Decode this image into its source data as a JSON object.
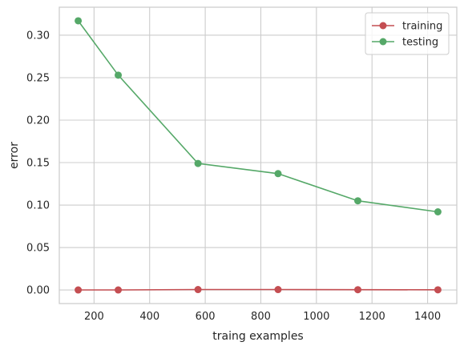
{
  "chart_data": {
    "type": "line",
    "title": "",
    "xlabel": "traing examples",
    "ylabel": "error",
    "x": [
      143,
      287,
      574,
      862,
      1149,
      1437
    ],
    "series": [
      {
        "name": "training",
        "color": "#c44e52",
        "marker": "circle",
        "values": [
          0.0,
          0.0,
          0.0005,
          0.0005,
          0.0003,
          0.0002
        ]
      },
      {
        "name": "testing",
        "color": "#55a868",
        "marker": "circle",
        "values": [
          0.317,
          0.253,
          0.149,
          0.137,
          0.105,
          0.092
        ]
      }
    ],
    "xlim": [
      75,
      1505
    ],
    "ylim": [
      -0.016,
      0.333
    ],
    "xticks": [
      200,
      400,
      600,
      800,
      1000,
      1200,
      1400
    ],
    "xtick_labels": [
      "200",
      "400",
      "600",
      "800",
      "1000",
      "1200",
      "1400"
    ],
    "yticks": [
      0.0,
      0.05,
      0.1,
      0.15,
      0.2,
      0.25,
      0.3
    ],
    "ytick_labels": [
      "0.00",
      "0.05",
      "0.10",
      "0.15",
      "0.20",
      "0.25",
      "0.30"
    ],
    "grid": true,
    "legend_position": "top-right",
    "frame_color": "#cccccc",
    "grid_color": "#cccccc"
  }
}
